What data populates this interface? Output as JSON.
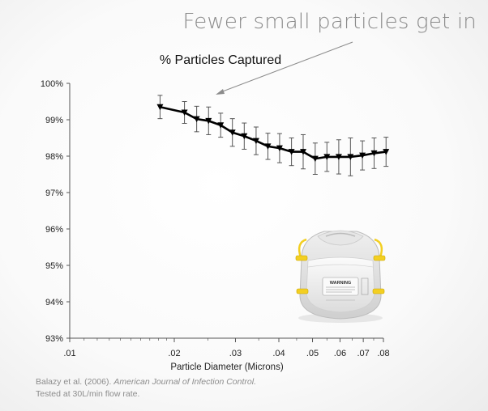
{
  "headline": "Fewer small particles get in",
  "citation": {
    "authors": "Balazy et al. (2006). ",
    "journal": "American Journal of Infection Control.",
    "line2": "Tested at 30L/min flow rate."
  },
  "mask_label": "WARNING",
  "chart_data": {
    "type": "line",
    "title": "% Particles Captured",
    "xlabel": "Particle Diameter (Microns)",
    "ylabel": "",
    "x_scale": "log",
    "xlim": [
      0.01,
      0.08
    ],
    "ylim": [
      93,
      100
    ],
    "x_ticks": [
      {
        "value": 0.01,
        "label": ".01"
      },
      {
        "value": 0.02,
        "label": ".02"
      },
      {
        "value": 0.03,
        "label": ".03"
      },
      {
        "value": 0.04,
        "label": ".04"
      },
      {
        "value": 0.05,
        "label": ".05"
      },
      {
        "value": 0.06,
        "label": ".06"
      },
      {
        "value": 0.07,
        "label": ".07"
      },
      {
        "value": 0.08,
        "label": ".08"
      }
    ],
    "y_ticks": [
      {
        "value": 93,
        "label": "93%"
      },
      {
        "value": 94,
        "label": "94%"
      },
      {
        "value": 95,
        "label": "95%"
      },
      {
        "value": 96,
        "label": "96%"
      },
      {
        "value": 97,
        "label": "97%"
      },
      {
        "value": 98,
        "label": "98%"
      },
      {
        "value": 99,
        "label": "99%"
      },
      {
        "value": 100,
        "label": "100%"
      }
    ],
    "grid": false,
    "colors": {
      "line": "#000000",
      "axis": "#555555",
      "error_bar": "#555555"
    },
    "series": [
      {
        "x": [
          0.0182,
          0.0214,
          0.0232,
          0.0251,
          0.0272,
          0.0294,
          0.0318,
          0.0344,
          0.0372,
          0.0402,
          0.0435,
          0.047,
          0.0509,
          0.055,
          0.0595,
          0.0643,
          0.0696,
          0.0752,
          0.0814
        ],
        "y": [
          99.35,
          99.2,
          99.02,
          98.97,
          98.85,
          98.65,
          98.55,
          98.42,
          98.27,
          98.22,
          98.12,
          98.12,
          97.93,
          97.98,
          97.98,
          97.98,
          98.02,
          98.08,
          98.12
        ],
        "error": [
          0.32,
          0.3,
          0.35,
          0.38,
          0.33,
          0.38,
          0.36,
          0.38,
          0.36,
          0.4,
          0.38,
          0.47,
          0.43,
          0.4,
          0.47,
          0.52,
          0.4,
          0.42,
          0.4
        ]
      }
    ]
  }
}
